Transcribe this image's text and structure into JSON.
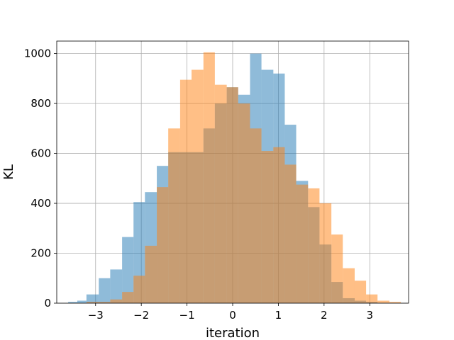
{
  "chart_data": {
    "type": "bar",
    "xlabel": "iteration",
    "ylabel": "KL",
    "xlim": [
      -3.85,
      3.85
    ],
    "ylim": [
      0,
      1050
    ],
    "xticks": [
      -3,
      -2,
      -1,
      0,
      1,
      2,
      3
    ],
    "xtick_labels": [
      "−3",
      "−2",
      "−1",
      "0",
      "1",
      "2",
      "3"
    ],
    "yticks": [
      0,
      200,
      400,
      600,
      800,
      1000
    ],
    "ytick_labels": [
      "0",
      "200",
      "400",
      "600",
      "800",
      "1000"
    ],
    "grid": true,
    "series": [
      {
        "color": "#1f77b4",
        "alpha": 0.5,
        "bins": [
          {
            "x0": -3.6,
            "x1": -3.4,
            "value": 5
          },
          {
            "x0": -3.4,
            "x1": -3.2,
            "value": 10
          },
          {
            "x0": -3.2,
            "x1": -2.93,
            "value": 35
          },
          {
            "x0": -2.93,
            "x1": -2.68,
            "value": 100
          },
          {
            "x0": -2.68,
            "x1": -2.42,
            "value": 135
          },
          {
            "x0": -2.42,
            "x1": -2.17,
            "value": 265
          },
          {
            "x0": -2.17,
            "x1": -1.92,
            "value": 405
          },
          {
            "x0": -1.92,
            "x1": -1.66,
            "value": 445
          },
          {
            "x0": -1.66,
            "x1": -1.41,
            "value": 550
          },
          {
            "x0": -1.41,
            "x1": -1.15,
            "value": 605
          },
          {
            "x0": -1.15,
            "x1": -0.9,
            "value": 605
          },
          {
            "x0": -0.9,
            "x1": -0.64,
            "value": 605
          },
          {
            "x0": -0.64,
            "x1": -0.39,
            "value": 700
          },
          {
            "x0": -0.39,
            "x1": -0.13,
            "value": 800
          },
          {
            "x0": -0.13,
            "x1": 0.12,
            "value": 865
          },
          {
            "x0": 0.12,
            "x1": 0.38,
            "value": 835
          },
          {
            "x0": 0.38,
            "x1": 0.63,
            "value": 1000
          },
          {
            "x0": 0.63,
            "x1": 0.89,
            "value": 935
          },
          {
            "x0": 0.89,
            "x1": 1.14,
            "value": 920
          },
          {
            "x0": 1.14,
            "x1": 1.39,
            "value": 715
          },
          {
            "x0": 1.39,
            "x1": 1.65,
            "value": 490
          },
          {
            "x0": 1.65,
            "x1": 1.9,
            "value": 385
          },
          {
            "x0": 1.9,
            "x1": 2.16,
            "value": 235
          },
          {
            "x0": 2.16,
            "x1": 2.41,
            "value": 85
          },
          {
            "x0": 2.41,
            "x1": 2.67,
            "value": 20
          },
          {
            "x0": 2.67,
            "x1": 2.92,
            "value": 10
          },
          {
            "x0": 2.92,
            "x1": 3.17,
            "value": 5
          }
        ]
      },
      {
        "color": "#ff7f0e",
        "alpha": 0.5,
        "bins": [
          {
            "x0": -3.2,
            "x1": -2.93,
            "value": 5
          },
          {
            "x0": -2.93,
            "x1": -2.68,
            "value": 5
          },
          {
            "x0": -2.68,
            "x1": -2.42,
            "value": 15
          },
          {
            "x0": -2.42,
            "x1": -2.17,
            "value": 45
          },
          {
            "x0": -2.17,
            "x1": -1.92,
            "value": 110
          },
          {
            "x0": -1.92,
            "x1": -1.66,
            "value": 230
          },
          {
            "x0": -1.66,
            "x1": -1.41,
            "value": 465
          },
          {
            "x0": -1.41,
            "x1": -1.15,
            "value": 700
          },
          {
            "x0": -1.15,
            "x1": -0.9,
            "value": 895
          },
          {
            "x0": -0.9,
            "x1": -0.64,
            "value": 935
          },
          {
            "x0": -0.64,
            "x1": -0.39,
            "value": 1005
          },
          {
            "x0": -0.39,
            "x1": -0.13,
            "value": 875
          },
          {
            "x0": -0.13,
            "x1": 0.12,
            "value": 865
          },
          {
            "x0": 0.12,
            "x1": 0.38,
            "value": 800
          },
          {
            "x0": 0.38,
            "x1": 0.63,
            "value": 700
          },
          {
            "x0": 0.63,
            "x1": 0.89,
            "value": 610
          },
          {
            "x0": 0.89,
            "x1": 1.14,
            "value": 625
          },
          {
            "x0": 1.14,
            "x1": 1.39,
            "value": 555
          },
          {
            "x0": 1.39,
            "x1": 1.65,
            "value": 475
          },
          {
            "x0": 1.65,
            "x1": 1.9,
            "value": 460
          },
          {
            "x0": 1.9,
            "x1": 2.16,
            "value": 400
          },
          {
            "x0": 2.16,
            "x1": 2.41,
            "value": 275
          },
          {
            "x0": 2.41,
            "x1": 2.67,
            "value": 140
          },
          {
            "x0": 2.67,
            "x1": 2.92,
            "value": 90
          },
          {
            "x0": 2.92,
            "x1": 3.17,
            "value": 35
          },
          {
            "x0": 3.17,
            "x1": 3.43,
            "value": 10
          },
          {
            "x0": 3.43,
            "x1": 3.68,
            "value": 5
          }
        ]
      }
    ]
  }
}
